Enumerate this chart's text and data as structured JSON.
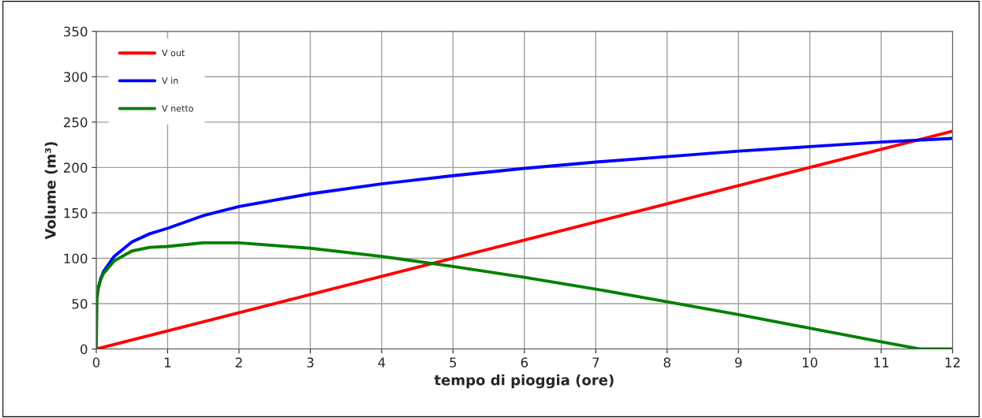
{
  "chart_data": {
    "type": "line",
    "xlabel": "tempo di pioggia (ore)",
    "ylabel": "Volume (m³)",
    "xlim": [
      0,
      12
    ],
    "ylim": [
      0,
      350
    ],
    "xticks": [
      0,
      1,
      2,
      3,
      4,
      5,
      6,
      7,
      8,
      9,
      10,
      11,
      12
    ],
    "yticks": [
      0,
      50,
      100,
      150,
      200,
      250,
      300,
      350
    ],
    "grid": true,
    "legend": "top left",
    "marker": "none",
    "line_style": "solid",
    "series": [
      {
        "name": "V out",
        "color": "#ff0000",
        "x": [
          0,
          12
        ],
        "values": [
          0,
          240
        ]
      },
      {
        "name": "V in",
        "color": "#0000ff",
        "x": [
          0.03,
          0.06,
          0.1,
          0.25,
          0.5,
          0.75,
          1,
          1.5,
          2,
          3,
          4,
          5,
          6,
          7,
          8,
          9,
          10,
          11,
          12
        ],
        "values": [
          68,
          77,
          85,
          102,
          118,
          127,
          133,
          147,
          157,
          171,
          182,
          191,
          199,
          206,
          212,
          218,
          223,
          228,
          232
        ]
      },
      {
        "name": "V netto",
        "color": "#008000",
        "x": [
          0,
          0.01,
          0.03,
          0.06,
          0.1,
          0.25,
          0.5,
          0.75,
          1,
          1.5,
          2,
          3,
          4,
          5,
          6,
          7,
          8,
          9,
          10,
          11,
          11.55,
          12
        ],
        "values": [
          0,
          55,
          67,
          76,
          83,
          97,
          108,
          112,
          113,
          117,
          117,
          111,
          102,
          91,
          79,
          66,
          52,
          38,
          23,
          8,
          0,
          0
        ]
      }
    ]
  }
}
